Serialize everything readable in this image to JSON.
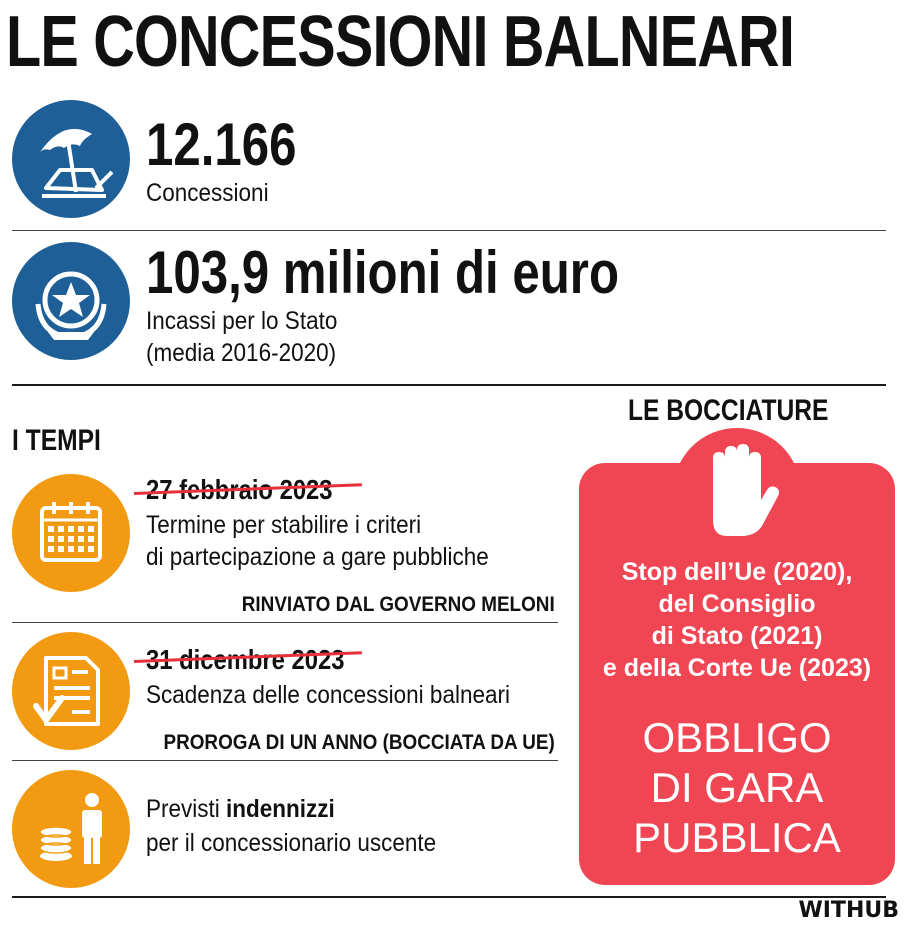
{
  "title": "LE CONCESSIONI BALNEARI",
  "stats": [
    {
      "value": "12.166",
      "label": "Concessioni",
      "icon": "beach-umbrella-icon"
    },
    {
      "value": "103,9 milioni di euro",
      "label_line1": "Incassi per lo Stato",
      "label_line2": "(media 2016-2020)",
      "icon": "state-emblem-icon"
    }
  ],
  "timeline": {
    "heading": "I TEMPI",
    "items": [
      {
        "date": "27 febbraio 2023",
        "line1": "Termine per stabilire i criteri",
        "line2": "di partecipazione a gare pubbliche",
        "tag": "RINVIATO DAL GOVERNO MELONI",
        "icon": "calendar-icon"
      },
      {
        "date": "31 dicembre 2023",
        "line1": "Scadenza delle concessioni balneari",
        "tag": "PROROGA DI UN ANNO (BOCCIATA DA UE)",
        "icon": "document-check-icon"
      },
      {
        "line1_prefix": "Previsti ",
        "line1_bold": "indennizzi",
        "line2": "per il concessionario uscente",
        "icon": "coins-person-icon"
      }
    ]
  },
  "bocciature": {
    "heading": "LE BOCCIATURE",
    "icon": "stop-hand-icon",
    "lines": [
      "Stop dell’Ue (2020),",
      "del Consiglio",
      "di Stato (2021)",
      "e della Corte Ue (2023)"
    ],
    "big_lines": [
      "OBBLIGO",
      "DI GARA",
      "PUBBLICA"
    ]
  },
  "brand": "WITHUB",
  "colors": {
    "blue": "#1d5f96",
    "orange": "#f29b12",
    "red": "#f04654",
    "strike": "#e8303a"
  }
}
